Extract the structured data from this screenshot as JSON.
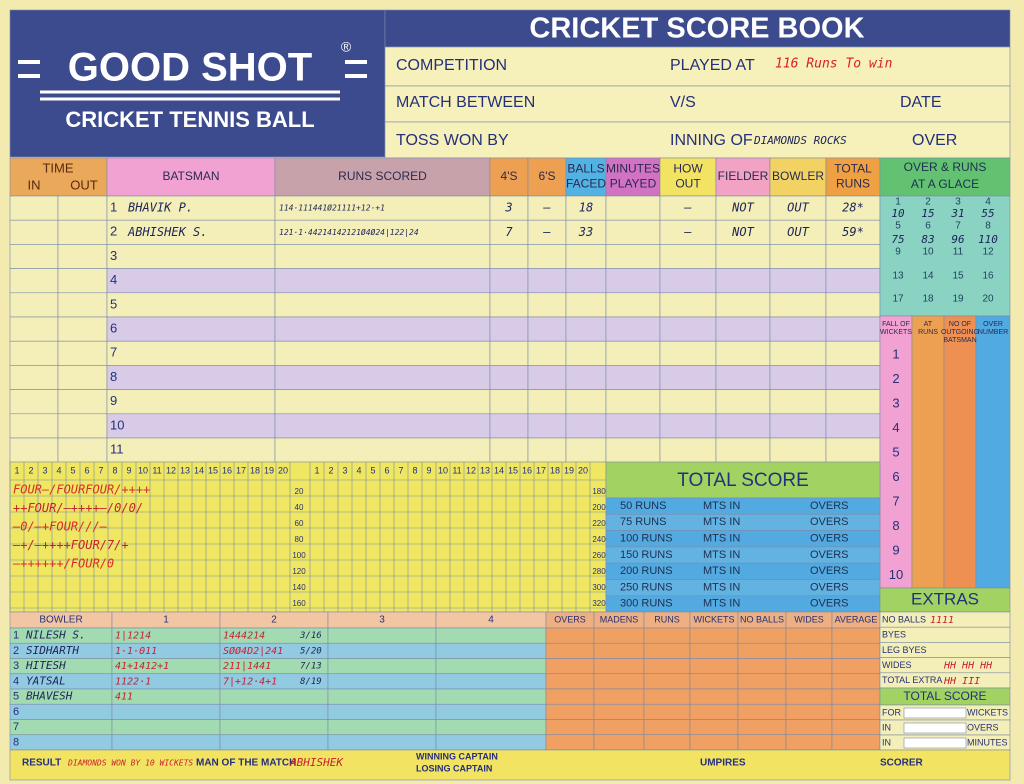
{
  "header": {
    "brand": "GOOD SHOT",
    "registered": "®",
    "subtitle": "CRICKET TENNIS BALL",
    "title": "CRICKET SCORE BOOK"
  },
  "fields": {
    "competition": "COMPETITION",
    "played_at": "PLAYED AT",
    "played_at_value": "116 Runs To win",
    "match_between": "MATCH BETWEEN",
    "vs": "V/S",
    "date": "DATE",
    "toss_won_by": "TOSS WON BY",
    "inning_of": "INNING OF",
    "inning_of_value": "DIAMONDS ROCKS",
    "over": "OVER"
  },
  "batting": {
    "time": "TIME",
    "in": "IN",
    "out": "OUT",
    "columns": [
      [
        "BATSMAN"
      ],
      [
        "RUNS SCORED"
      ],
      [
        "4'S"
      ],
      [
        "6'S"
      ],
      [
        "BALLS",
        "FACED"
      ],
      [
        "MINUTES",
        "PLAYED"
      ],
      [
        "HOW",
        "OUT"
      ],
      [
        "FIELDER"
      ],
      [
        "BOWLER"
      ],
      [
        "TOTAL",
        "RUNS"
      ]
    ],
    "row_numbers": [
      "1",
      "2",
      "3",
      "4",
      "5",
      "6",
      "7",
      "8",
      "9",
      "10",
      "11"
    ],
    "rows": [
      {
        "batsman": "BHAVIK P.",
        "runs_scored": "114·111441Ø21111+12·+1",
        "fours": "3",
        "sixes": "—",
        "balls_faced": "18",
        "how_out": "—",
        "fielder": "NOT",
        "bowler": "OUT",
        "total_runs": "28*"
      },
      {
        "batsman": "ABHISHEK S.",
        "runs_scored": "121·1·44214142121Ø4Ø24|122|24",
        "fours": "7",
        "sixes": "—",
        "balls_faced": "33",
        "how_out": "—",
        "fielder": "NOT",
        "bowler": "OUT",
        "total_runs": "59*"
      }
    ]
  },
  "over_glance": {
    "title": [
      "OVER & RUNS",
      "AT A GLACE"
    ],
    "overs": [
      "1",
      "2",
      "3",
      "4",
      "5",
      "6",
      "7",
      "8",
      "9",
      "10",
      "11",
      "12",
      "13",
      "14",
      "15",
      "16",
      "17",
      "18",
      "19",
      "20"
    ],
    "runs": [
      "10",
      "15",
      "31",
      "55",
      "75",
      "83",
      "96",
      "110"
    ]
  },
  "fall_of_wickets": {
    "headers": [
      [
        "FALL OF",
        "WICKETS"
      ],
      [
        "AT",
        "RUNS"
      ],
      [
        "NO OF",
        "OUTGOING",
        "BATSMAN"
      ],
      [
        "OVER",
        "NUMBER"
      ]
    ],
    "numbers": [
      "1",
      "2",
      "3",
      "4",
      "5",
      "6",
      "7",
      "8",
      "9",
      "10"
    ]
  },
  "over_grid": {
    "balls": [
      "1",
      "2",
      "3",
      "4",
      "5",
      "6",
      "7",
      "8",
      "9",
      "10",
      "11",
      "12",
      "13",
      "14",
      "15",
      "16",
      "17",
      "18",
      "19",
      "20"
    ],
    "left_totals": [
      "20",
      "40",
      "60",
      "80",
      "100",
      "120",
      "140",
      "160"
    ],
    "right_totals": [
      "180",
      "200",
      "220",
      "240",
      "260",
      "280",
      "300",
      "320"
    ],
    "entries": [
      "FOUR—/FOURFOUR/++++",
      "++FOUR/—++++—/0/0/",
      "—0/—+FOUR///—",
      "—+/—++++FOUR/7/+",
      "—++++++/FOUR/0"
    ]
  },
  "total_score_box": {
    "title": "TOTAL SCORE",
    "milestones": [
      "50 RUNS",
      "75 RUNS",
      "100 RUNS",
      "150 RUNS",
      "200 RUNS",
      "250 RUNS",
      "300 RUNS"
    ],
    "mts_in": "MTS IN",
    "overs": "OVERS"
  },
  "bowling": {
    "headers": [
      "BOWLER",
      "1",
      "2",
      "3",
      "4",
      "OVERS",
      "MADENS",
      "RUNS",
      "WICKETS",
      "NO BALLS",
      "WIDES",
      "AVERAGE"
    ],
    "row_numbers": [
      "1",
      "2",
      "3",
      "4",
      "5",
      "6",
      "7",
      "8"
    ],
    "rows": [
      {
        "name": "NILESH S.",
        "over1": "1|1214",
        "over2": "1444214",
        "total": "3/16"
      },
      {
        "name": "SIDHARTH",
        "over1": "1·1·011",
        "over2": "SØØ4D2|241",
        "total": "5/20"
      },
      {
        "name": "HITESH",
        "over1": "41+1412+1",
        "over2": "211|1441",
        "total": "7/13"
      },
      {
        "name": "YATSAL",
        "over1": "1122·1",
        "over2": "7|+12·4+1",
        "total": "8/19"
      },
      {
        "name": "BHAVESH",
        "over1": "411"
      }
    ]
  },
  "extras": {
    "title": "EXTRAS",
    "no_balls": "NO BALLS",
    "no_balls_value": "1111",
    "byes": "BYES",
    "leg_byes": "LEG BYES",
    "wides": "WIDES",
    "wides_value": "HH HH HH",
    "total_extra": "TOTAL EXTRA",
    "total_extra_value": "HH III"
  },
  "total_score": {
    "title": "TOTAL SCORE",
    "for": "FOR",
    "wickets": "WICKETS",
    "in1": "IN",
    "overs": "OVERS",
    "in2": "IN",
    "minutes": "MINUTES"
  },
  "footer": {
    "result": "RESULT",
    "result_value": "DIAMONDS WON BY 10 WICKETS",
    "man_of_the_match": "MAN OF THE MATCH",
    "man_of_the_match_value": "ABHISHEK",
    "winning_captain": "WINNING CAPTAIN",
    "losing_captain": "LOSING CAPTAIN",
    "umpires": "UMPIRES",
    "scorer": "SCORER"
  }
}
